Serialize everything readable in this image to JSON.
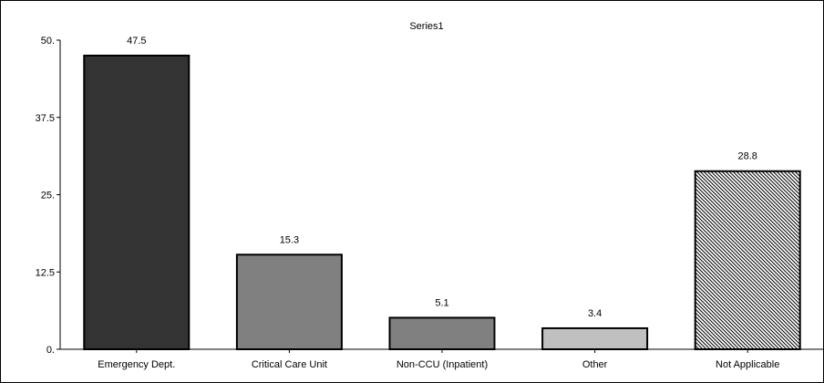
{
  "chart_data": {
    "type": "bar",
    "title": "Series1",
    "xlabel": "",
    "ylabel": "",
    "categories": [
      "Emergency Dept.",
      "Critical Care Unit",
      "Non-CCU (Inpatient)",
      "Other",
      "Not Applicable"
    ],
    "values": [
      47.5,
      15.3,
      5.1,
      3.4,
      28.8
    ],
    "value_labels": [
      "47.5",
      "15.3",
      "5.1",
      "3.4",
      "28.8"
    ],
    "ylim": [
      0,
      50
    ],
    "yticks": [
      0,
      12.5,
      25,
      37.5,
      50
    ],
    "ytick_labels": [
      "0.",
      "12.5",
      "25.",
      "37.5",
      "50."
    ],
    "grid": false,
    "legend": "none",
    "bar_fills": [
      "#333333",
      "#808080",
      "#808080",
      "#c0c0c0",
      "hatch"
    ]
  }
}
